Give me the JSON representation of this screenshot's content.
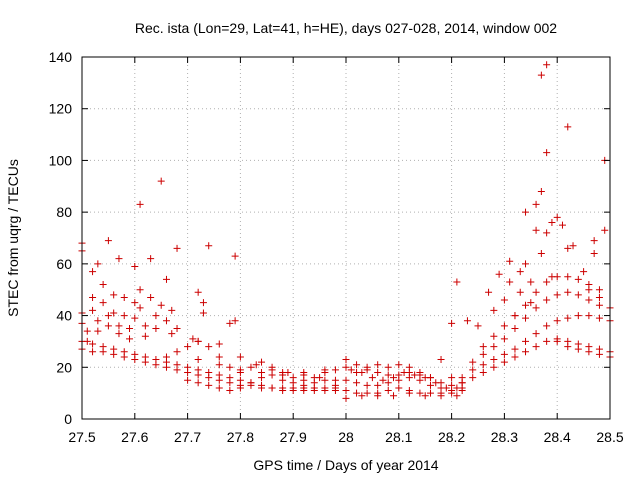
{
  "chart_data": {
    "type": "scatter",
    "title": "Rec. ista (Lon=29, Lat=41, h=HE), days 027-028, 2014, window 002",
    "xlabel": "GPS time / Days of year 2014",
    "ylabel": "STEC from uqrg / TECUs",
    "xlim": [
      27.5,
      28.5
    ],
    "ylim": [
      0,
      140
    ],
    "xticks": [
      "27.5",
      "27.6",
      "27.7",
      "27.8",
      "27.9",
      "28",
      "28.1",
      "28.2",
      "28.3",
      "28.4",
      "28.5"
    ],
    "yticks": [
      "0",
      "20",
      "40",
      "60",
      "80",
      "100",
      "120",
      "140"
    ],
    "grid": true,
    "marker": "+",
    "color": "#cc0000",
    "series": [
      {
        "points": [
          [
            27.5,
            68
          ],
          [
            27.5,
            65
          ],
          [
            27.52,
            57
          ],
          [
            27.53,
            60
          ],
          [
            27.55,
            69
          ],
          [
            27.57,
            62
          ],
          [
            27.6,
            59
          ],
          [
            27.61,
            83
          ],
          [
            27.63,
            62
          ],
          [
            27.65,
            92
          ],
          [
            27.66,
            54
          ],
          [
            27.68,
            66
          ],
          [
            27.74,
            67
          ],
          [
            27.79,
            63
          ],
          [
            27.72,
            49
          ],
          [
            27.73,
            45
          ],
          [
            27.73,
            41
          ],
          [
            27.79,
            38
          ],
          [
            27.78,
            37
          ],
          [
            27.71,
            31
          ],
          [
            27.72,
            30
          ],
          [
            27.76,
            29
          ],
          [
            27.5,
            41
          ],
          [
            27.5,
            37
          ],
          [
            27.51,
            34
          ],
          [
            27.51,
            30
          ],
          [
            27.52,
            47
          ],
          [
            27.52,
            42
          ],
          [
            27.53,
            38
          ],
          [
            27.53,
            34
          ],
          [
            27.54,
            52
          ],
          [
            27.54,
            45
          ],
          [
            27.55,
            40
          ],
          [
            27.55,
            36
          ],
          [
            27.56,
            48
          ],
          [
            27.56,
            41
          ],
          [
            27.57,
            36
          ],
          [
            27.57,
            33
          ],
          [
            27.58,
            47
          ],
          [
            27.58,
            40
          ],
          [
            27.59,
            35
          ],
          [
            27.59,
            31
          ],
          [
            27.6,
            45
          ],
          [
            27.6,
            39
          ],
          [
            27.61,
            50
          ],
          [
            27.61,
            43
          ],
          [
            27.62,
            36
          ],
          [
            27.62,
            32
          ],
          [
            27.63,
            47
          ],
          [
            27.64,
            40
          ],
          [
            27.64,
            35
          ],
          [
            27.65,
            44
          ],
          [
            27.66,
            38
          ],
          [
            27.67,
            33
          ],
          [
            27.67,
            42
          ],
          [
            27.68,
            35
          ],
          [
            27.5,
            27
          ],
          [
            27.52,
            26
          ],
          [
            27.54,
            26
          ],
          [
            27.56,
            25
          ],
          [
            27.58,
            24
          ],
          [
            27.6,
            23
          ],
          [
            27.62,
            22
          ],
          [
            27.64,
            21
          ],
          [
            27.66,
            20
          ],
          [
            27.68,
            19
          ],
          [
            27.7,
            18
          ],
          [
            27.72,
            17
          ],
          [
            27.74,
            16
          ],
          [
            27.76,
            15
          ],
          [
            27.78,
            14
          ],
          [
            27.8,
            13
          ],
          [
            27.82,
            13
          ],
          [
            27.84,
            12
          ],
          [
            27.86,
            12
          ],
          [
            27.88,
            11
          ],
          [
            27.9,
            11
          ],
          [
            27.92,
            11
          ],
          [
            27.94,
            11
          ],
          [
            27.96,
            11
          ],
          [
            27.98,
            11
          ],
          [
            27.5,
            30
          ],
          [
            27.52,
            29
          ],
          [
            27.54,
            28
          ],
          [
            27.56,
            27
          ],
          [
            27.58,
            26
          ],
          [
            27.6,
            25
          ],
          [
            27.62,
            24
          ],
          [
            27.64,
            23
          ],
          [
            27.66,
            22
          ],
          [
            27.68,
            21
          ],
          [
            27.7,
            20
          ],
          [
            27.72,
            19
          ],
          [
            27.74,
            18
          ],
          [
            27.76,
            17
          ],
          [
            27.78,
            16
          ],
          [
            27.8,
            15
          ],
          [
            27.82,
            14
          ],
          [
            27.84,
            13
          ],
          [
            27.86,
            12
          ],
          [
            27.88,
            12
          ],
          [
            27.9,
            12
          ],
          [
            27.92,
            12
          ],
          [
            27.94,
            12
          ],
          [
            27.96,
            12
          ],
          [
            27.98,
            12
          ],
          [
            27.66,
            24
          ],
          [
            27.68,
            26
          ],
          [
            27.7,
            28
          ],
          [
            27.72,
            30
          ],
          [
            27.74,
            28
          ],
          [
            27.76,
            24
          ],
          [
            27.78,
            20
          ],
          [
            27.8,
            18
          ],
          [
            27.82,
            20
          ],
          [
            27.84,
            22
          ],
          [
            27.86,
            20
          ],
          [
            27.88,
            18
          ],
          [
            27.9,
            16
          ],
          [
            27.92,
            15
          ],
          [
            27.94,
            16
          ],
          [
            27.96,
            18
          ],
          [
            27.98,
            19
          ],
          [
            27.7,
            15
          ],
          [
            27.72,
            14
          ],
          [
            27.74,
            13
          ],
          [
            27.76,
            12
          ],
          [
            27.78,
            11
          ],
          [
            27.8,
            12
          ],
          [
            27.82,
            14
          ],
          [
            27.84,
            16
          ],
          [
            27.86,
            17
          ],
          [
            27.88,
            15
          ],
          [
            27.9,
            14
          ],
          [
            27.92,
            13
          ],
          [
            27.94,
            14
          ],
          [
            27.96,
            15
          ],
          [
            27.98,
            13
          ],
          [
            27.8,
            24
          ],
          [
            27.83,
            21
          ],
          [
            27.86,
            19
          ],
          [
            27.89,
            18
          ],
          [
            27.92,
            17
          ],
          [
            27.95,
            16
          ],
          [
            27.98,
            15
          ],
          [
            27.72,
            23
          ],
          [
            27.76,
            21
          ],
          [
            27.8,
            19
          ],
          [
            27.84,
            18
          ],
          [
            27.88,
            17
          ],
          [
            27.92,
            18
          ],
          [
            27.96,
            19
          ],
          [
            28.0,
            11
          ],
          [
            28.02,
            10
          ],
          [
            28.04,
            10
          ],
          [
            28.06,
            10
          ],
          [
            28.08,
            11
          ],
          [
            28.1,
            12
          ],
          [
            28.12,
            11
          ],
          [
            28.14,
            10
          ],
          [
            28.16,
            10
          ],
          [
            28.18,
            10
          ],
          [
            28.2,
            10
          ],
          [
            28.22,
            11
          ],
          [
            28.0,
            23
          ],
          [
            28.02,
            21
          ],
          [
            28.04,
            19
          ],
          [
            28.06,
            18
          ],
          [
            28.08,
            17
          ],
          [
            28.1,
            17
          ],
          [
            28.12,
            18
          ],
          [
            28.14,
            17
          ],
          [
            28.16,
            16
          ],
          [
            28.18,
            14
          ],
          [
            28.2,
            13
          ],
          [
            28.22,
            14
          ],
          [
            28.0,
            15
          ],
          [
            28.02,
            14
          ],
          [
            28.04,
            13
          ],
          [
            28.06,
            13
          ],
          [
            28.08,
            14
          ],
          [
            28.1,
            15
          ],
          [
            28.12,
            16
          ],
          [
            28.14,
            15
          ],
          [
            28.16,
            13
          ],
          [
            28.18,
            12
          ],
          [
            28.2,
            11
          ],
          [
            28.22,
            12
          ],
          [
            28.01,
            19
          ],
          [
            28.03,
            18
          ],
          [
            28.05,
            16
          ],
          [
            28.07,
            15
          ],
          [
            28.09,
            16
          ],
          [
            28.11,
            18
          ],
          [
            28.13,
            17
          ],
          [
            28.15,
            16
          ],
          [
            28.17,
            14
          ],
          [
            28.19,
            12
          ],
          [
            28.21,
            12
          ],
          [
            28.0,
            8
          ],
          [
            28.03,
            9
          ],
          [
            28.06,
            9
          ],
          [
            28.09,
            9
          ],
          [
            28.12,
            10
          ],
          [
            28.15,
            9
          ],
          [
            28.18,
            9
          ],
          [
            28.21,
            9
          ],
          [
            28.0,
            20
          ],
          [
            28.02,
            18
          ],
          [
            28.04,
            20
          ],
          [
            28.06,
            21
          ],
          [
            28.08,
            20
          ],
          [
            28.1,
            21
          ],
          [
            28.12,
            20
          ],
          [
            28.14,
            18
          ],
          [
            28.16,
            16
          ],
          [
            28.18,
            23
          ],
          [
            28.2,
            16
          ],
          [
            28.2,
            37
          ],
          [
            28.21,
            53
          ],
          [
            28.23,
            38
          ],
          [
            28.25,
            36
          ],
          [
            28.27,
            49
          ],
          [
            28.28,
            42
          ],
          [
            28.29,
            56
          ],
          [
            28.3,
            46
          ],
          [
            28.31,
            61
          ],
          [
            28.31,
            53
          ],
          [
            28.32,
            40
          ],
          [
            28.33,
            57
          ],
          [
            28.33,
            49
          ],
          [
            28.34,
            80
          ],
          [
            28.34,
            60
          ],
          [
            28.35,
            53
          ],
          [
            28.35,
            45
          ],
          [
            28.36,
            83
          ],
          [
            28.36,
            73
          ],
          [
            28.37,
            133
          ],
          [
            28.37,
            88
          ],
          [
            28.37,
            64
          ],
          [
            28.38,
            137
          ],
          [
            28.38,
            103
          ],
          [
            28.38,
            72
          ],
          [
            28.39,
            76
          ],
          [
            28.39,
            55
          ],
          [
            28.4,
            78
          ],
          [
            28.41,
            75
          ],
          [
            28.42,
            113
          ],
          [
            28.42,
            66
          ],
          [
            28.43,
            67
          ],
          [
            28.45,
            57
          ],
          [
            28.46,
            50
          ],
          [
            28.47,
            69
          ],
          [
            28.47,
            64
          ],
          [
            28.48,
            47
          ],
          [
            28.49,
            100
          ],
          [
            28.49,
            73
          ],
          [
            28.22,
            14
          ],
          [
            28.24,
            16
          ],
          [
            28.26,
            18
          ],
          [
            28.28,
            20
          ],
          [
            28.3,
            22
          ],
          [
            28.32,
            24
          ],
          [
            28.34,
            26
          ],
          [
            28.36,
            28
          ],
          [
            28.38,
            30
          ],
          [
            28.4,
            31
          ],
          [
            28.42,
            30
          ],
          [
            28.44,
            29
          ],
          [
            28.46,
            28
          ],
          [
            28.48,
            27
          ],
          [
            28.5,
            26
          ],
          [
            28.22,
            16
          ],
          [
            28.24,
            19
          ],
          [
            28.26,
            21
          ],
          [
            28.28,
            23
          ],
          [
            28.3,
            25
          ],
          [
            28.32,
            27
          ],
          [
            28.34,
            30
          ],
          [
            28.36,
            33
          ],
          [
            28.38,
            36
          ],
          [
            28.4,
            38
          ],
          [
            28.42,
            39
          ],
          [
            28.44,
            40
          ],
          [
            28.46,
            40
          ],
          [
            28.48,
            39
          ],
          [
            28.5,
            38
          ],
          [
            28.24,
            22
          ],
          [
            28.26,
            25
          ],
          [
            28.28,
            28
          ],
          [
            28.3,
            31
          ],
          [
            28.32,
            35
          ],
          [
            28.34,
            39
          ],
          [
            28.36,
            43
          ],
          [
            28.38,
            46
          ],
          [
            28.4,
            48
          ],
          [
            28.42,
            49
          ],
          [
            28.44,
            48
          ],
          [
            28.46,
            46
          ],
          [
            28.48,
            44
          ],
          [
            28.5,
            43
          ],
          [
            28.26,
            28
          ],
          [
            28.28,
            32
          ],
          [
            28.3,
            36
          ],
          [
            28.32,
            40
          ],
          [
            28.34,
            44
          ],
          [
            28.36,
            49
          ],
          [
            28.38,
            53
          ],
          [
            28.4,
            55
          ],
          [
            28.42,
            55
          ],
          [
            28.44,
            54
          ],
          [
            28.46,
            52
          ],
          [
            28.48,
            50
          ],
          [
            28.4,
            30
          ],
          [
            28.42,
            28
          ],
          [
            28.44,
            27
          ],
          [
            28.46,
            26
          ],
          [
            28.48,
            25
          ],
          [
            28.5,
            24
          ]
        ]
      }
    ]
  }
}
